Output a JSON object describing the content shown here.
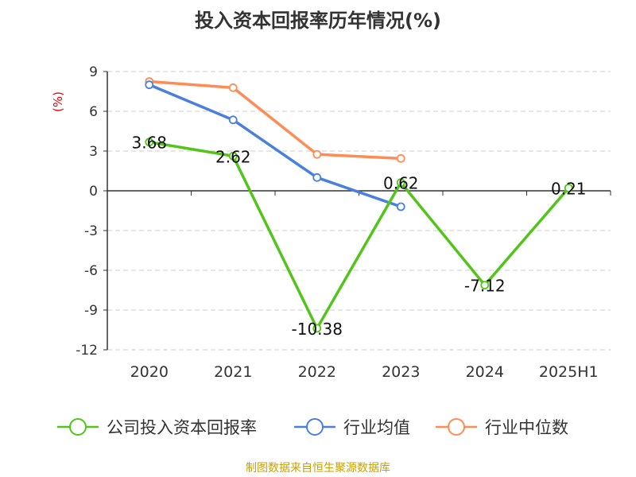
{
  "chart_data": {
    "type": "line",
    "title": "投入资本回报率历年情况(%)",
    "ylabel": "(%)",
    "xlabel": "",
    "categories": [
      "2020",
      "2021",
      "2022",
      "2023",
      "2024",
      "2025H1"
    ],
    "yticks": [
      "9",
      "6",
      "3",
      "0",
      "-3",
      "-6",
      "-9",
      "-12"
    ],
    "ylim": [
      -12,
      9
    ],
    "grid": true,
    "legend_position": "bottom",
    "series": [
      {
        "name": "公司投入资本回报率",
        "color": "#52c41a",
        "values": [
          3.68,
          2.62,
          -10.38,
          0.62,
          -7.12,
          0.21
        ],
        "labels": [
          "3.68",
          "2.62",
          "-10.38",
          "0.62",
          "-7.12",
          "0.21"
        ]
      },
      {
        "name": "行业均值",
        "color": "#4a7fe0",
        "values": [
          8.0,
          5.35,
          1.0,
          -1.2,
          null,
          null
        ]
      },
      {
        "name": "行业中位数",
        "color": "#ff8c55",
        "values": [
          8.25,
          7.78,
          2.75,
          2.44,
          null,
          null
        ]
      }
    ]
  },
  "footer": "制图数据来自恒生聚源数据库"
}
